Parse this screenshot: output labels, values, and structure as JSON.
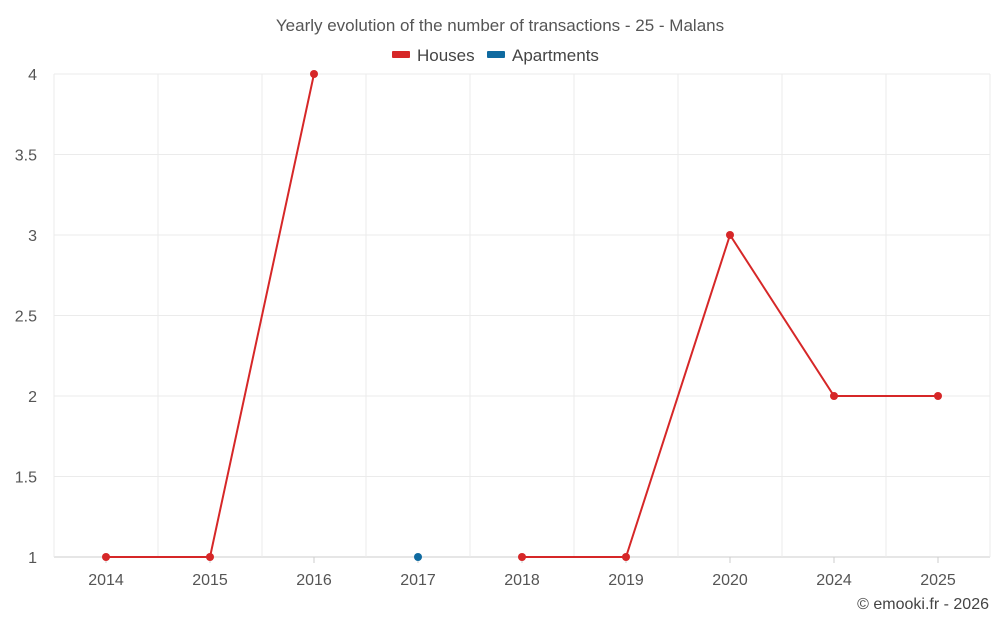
{
  "chart_data": {
    "type": "line",
    "title": "Yearly evolution of the number of transactions - 25 - Malans",
    "categories": [
      "2014",
      "2015",
      "2016",
      "2017",
      "2018",
      "2019",
      "2020",
      "2024",
      "2025"
    ],
    "series": [
      {
        "name": "Houses",
        "color": "#d62728",
        "values": [
          1,
          1,
          4,
          null,
          1,
          1,
          3,
          2,
          2
        ]
      },
      {
        "name": "Apartments",
        "color": "#0f6aa0",
        "values": [
          null,
          null,
          null,
          1,
          null,
          null,
          null,
          null,
          null
        ]
      }
    ],
    "y_ticks": [
      "1",
      "1.5",
      "2",
      "2.5",
      "3",
      "3.5",
      "4"
    ],
    "ylim": [
      1,
      4
    ],
    "xlabel": "",
    "ylabel": "",
    "grid": true,
    "legend_position": "top-center"
  },
  "credit": "© emooki.fr - 2026"
}
